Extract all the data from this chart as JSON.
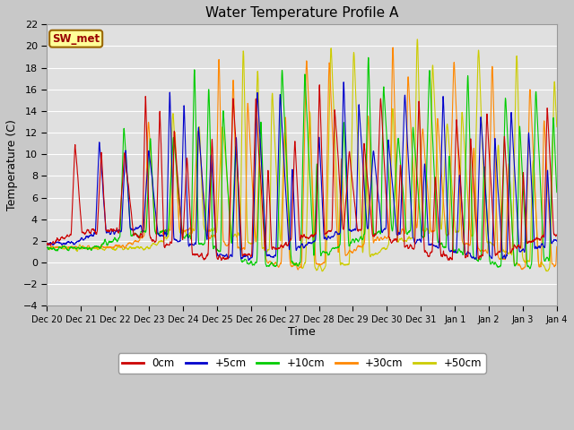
{
  "title": "Water Temperature Profile A",
  "xlabel": "Time",
  "ylabel": "Temperature (C)",
  "ylim": [
    -4,
    22
  ],
  "yticks": [
    -4,
    -2,
    0,
    2,
    4,
    6,
    8,
    10,
    12,
    14,
    16,
    18,
    20,
    22
  ],
  "annotation_text": "SW_met",
  "annotation_color": "#990000",
  "annotation_bg": "#ffff99",
  "annotation_border": "#996600",
  "fig_bg": "#c8c8c8",
  "plot_bg": "#e0e0e0",
  "grid_color": "#ffffff",
  "colors": {
    "0cm": "#cc0000",
    "+5cm": "#0000cc",
    "+10cm": "#00cc00",
    "+30cm": "#ff8800",
    "+50cm": "#cccc00"
  },
  "linewidth": 0.8,
  "xtick_labels": [
    "Dec 20",
    "Dec 21",
    "Dec 22",
    "Dec 23",
    "Dec 24",
    "Dec 25",
    "Dec 26",
    "Dec 27",
    "Dec 28",
    "Dec 29",
    "Dec 30",
    "Dec 31",
    "Jan 1",
    "Jan 2",
    "Jan 3",
    "Jan 4"
  ],
  "legend_labels": [
    "0cm",
    "+5cm",
    "+10cm",
    "+30cm",
    "+50cm"
  ]
}
